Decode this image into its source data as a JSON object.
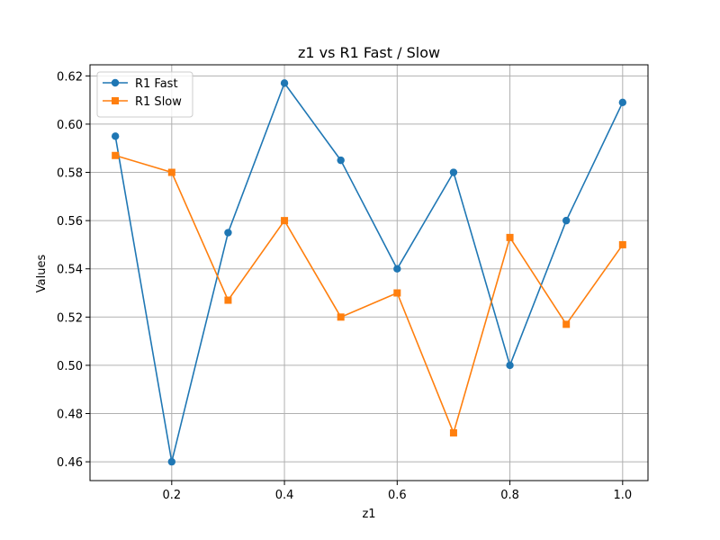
{
  "chart_data": {
    "type": "line",
    "title": "z1 vs R1 Fast / Slow",
    "xlabel": "z1",
    "ylabel": "Values",
    "x": [
      0.1,
      0.2,
      0.3,
      0.4,
      0.5,
      0.6,
      0.7,
      0.8,
      0.9,
      1.0
    ],
    "xlim": [
      0.055,
      1.045
    ],
    "ylim": [
      0.4522,
      0.6246
    ],
    "xticks": [
      0.2,
      0.4,
      0.6,
      0.8,
      1.0
    ],
    "xtick_labels": [
      "0.2",
      "0.4",
      "0.6",
      "0.8",
      "1.0"
    ],
    "yticks": [
      0.46,
      0.48,
      0.5,
      0.52,
      0.54,
      0.56,
      0.58,
      0.6,
      0.62
    ],
    "ytick_labels": [
      "0.46",
      "0.48",
      "0.50",
      "0.52",
      "0.54",
      "0.56",
      "0.58",
      "0.60",
      "0.62"
    ],
    "grid": true,
    "legend_position": "top-left",
    "series": [
      {
        "name": "R1 Fast",
        "color": "#1f77b4",
        "marker": "circle",
        "values": [
          0.595,
          0.46,
          0.555,
          0.617,
          0.585,
          0.54,
          0.58,
          0.5,
          0.56,
          0.609
        ]
      },
      {
        "name": "R1 Slow",
        "color": "#ff7f0e",
        "marker": "square",
        "values": [
          0.587,
          0.58,
          0.527,
          0.56,
          0.52,
          0.53,
          0.472,
          0.553,
          0.517,
          0.55
        ]
      }
    ]
  }
}
